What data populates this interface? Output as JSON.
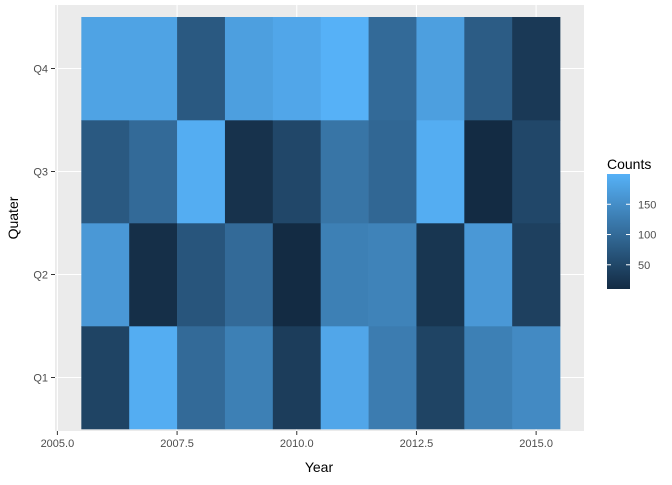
{
  "chart_data": {
    "type": "heatmap",
    "title": "",
    "xlabel": "Year",
    "ylabel": "Quater",
    "xlim": [
      2005.5,
      2015.5
    ],
    "x_ticks": [
      2005.0,
      2007.5,
      2010.0,
      2012.5,
      2015.0
    ],
    "x_tick_labels": [
      "2005.0",
      "2007.5",
      "2010.0",
      "2012.5",
      "2015.0"
    ],
    "y_categories": [
      "Q1",
      "Q2",
      "Q3",
      "Q4"
    ],
    "x": [
      2006,
      2007,
      2008,
      2009,
      2010,
      2011,
      2012,
      2013,
      2014,
      2015
    ],
    "values": {
      "Q4": [
        180,
        180,
        75,
        175,
        185,
        200,
        100,
        175,
        80,
        30
      ],
      "Q3": [
        75,
        100,
        195,
        20,
        50,
        115,
        95,
        195,
        10,
        50
      ],
      "Q2": [
        165,
        15,
        70,
        100,
        10,
        130,
        135,
        25,
        165,
        40
      ],
      "Q1": [
        45,
        195,
        100,
        130,
        35,
        185,
        125,
        45,
        130,
        145
      ]
    },
    "legend": {
      "title": "Counts",
      "ticks": [
        50,
        100,
        150
      ],
      "range": [
        10,
        200
      ],
      "low_color": "#132B43",
      "high_color": "#56B1F7",
      "position": "right"
    },
    "panel_background": "#EBEBEB",
    "grid": true
  }
}
